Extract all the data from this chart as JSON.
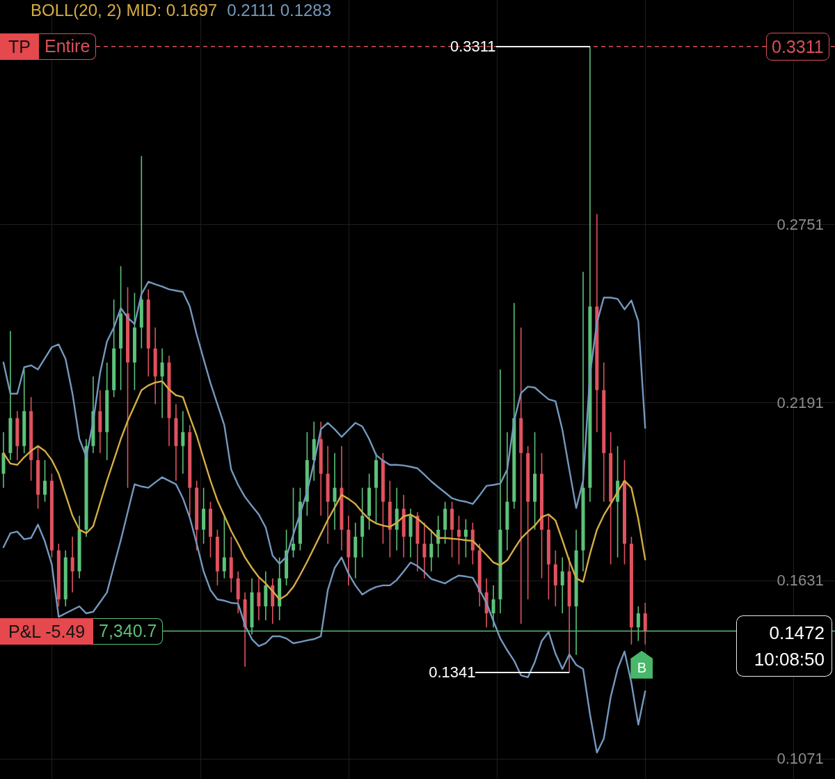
{
  "chart_data": {
    "type": "candlestick",
    "categories": [
      null,
      null,
      null,
      null,
      null,
      null,
      null,
      null,
      null,
      null,
      null,
      null,
      null,
      null,
      null,
      null,
      null,
      null,
      null,
      null,
      null,
      null,
      null,
      null,
      null,
      null,
      null,
      null,
      null,
      null,
      null,
      null,
      null,
      null,
      null,
      null,
      null,
      null,
      null,
      null,
      null,
      null,
      null,
      null,
      null,
      null,
      null,
      null,
      null,
      null,
      null,
      null,
      null,
      null,
      null,
      null,
      null,
      null,
      null,
      null,
      null,
      null,
      null,
      null,
      null,
      null,
      null,
      null,
      null,
      null,
      null,
      null,
      null,
      null,
      null,
      null,
      null,
      null,
      null,
      null,
      null,
      null,
      null,
      null,
      null,
      null,
      null,
      null,
      null,
      null,
      null,
      null,
      null,
      null
    ],
    "ohlc": [
      [
        0.1967,
        0.2098,
        0.1923,
        0.2032
      ],
      [
        0.2032,
        0.2416,
        0.201,
        0.2142
      ],
      [
        0.2142,
        0.2164,
        0.201,
        0.2054
      ],
      [
        0.2054,
        0.2295,
        0.2032,
        0.2164
      ],
      [
        0.2164,
        0.2208,
        0.1945,
        0.201
      ],
      [
        0.201,
        0.2054,
        0.1857,
        0.1901
      ],
      [
        0.1901,
        0.201,
        0.1879,
        0.1945
      ],
      [
        0.1945,
        0.1967,
        0.1704,
        0.1726
      ],
      [
        0.1726,
        0.1747,
        0.155,
        0.1572
      ],
      [
        0.1572,
        0.1726,
        0.155,
        0.1704
      ],
      [
        0.1704,
        0.1769,
        0.1594,
        0.166
      ],
      [
        0.166,
        0.1835,
        0.1638,
        0.1791
      ],
      [
        0.1791,
        0.2076,
        0.1769,
        0.2054
      ],
      [
        0.2054,
        0.2273,
        0.2032,
        0.2164
      ],
      [
        0.2164,
        0.223,
        0.2032,
        0.2098
      ],
      [
        0.2098,
        0.2317,
        0.201,
        0.223
      ],
      [
        0.223,
        0.2515,
        0.2208,
        0.2361
      ],
      [
        0.2361,
        0.262,
        0.223,
        0.2471
      ],
      [
        0.2471,
        0.2554,
        0.1923,
        0.2317
      ],
      [
        0.2317,
        0.2536,
        0.223,
        0.2427
      ],
      [
        0.2427,
        0.2966,
        0.2361,
        0.2515
      ],
      [
        0.2515,
        0.2547,
        0.2273,
        0.2361
      ],
      [
        0.2361,
        0.2427,
        0.2186,
        0.2273
      ],
      [
        0.2273,
        0.2361,
        0.2142,
        0.2317
      ],
      [
        0.2317,
        0.2339,
        0.2054,
        0.2142
      ],
      [
        0.2142,
        0.2186,
        0.1945,
        0.2054
      ],
      [
        0.2054,
        0.2164,
        0.1967,
        0.2098
      ],
      [
        0.2098,
        0.212,
        0.1835,
        0.1923
      ],
      [
        0.1923,
        0.1945,
        0.1726,
        0.1791
      ],
      [
        0.1791,
        0.1923,
        0.1747,
        0.1857
      ],
      [
        0.1857,
        0.1879,
        0.1704,
        0.1769
      ],
      [
        0.1769,
        0.1791,
        0.1616,
        0.166
      ],
      [
        0.166,
        0.1835,
        0.1638,
        0.1704
      ],
      [
        0.1704,
        0.1769,
        0.1594,
        0.1638
      ],
      [
        0.1638,
        0.166,
        0.1528,
        0.1572
      ],
      [
        0.1572,
        0.1594,
        0.136,
        0.1484
      ],
      [
        0.1484,
        0.1638,
        0.1462,
        0.1594
      ],
      [
        0.1594,
        0.1638,
        0.1506,
        0.155
      ],
      [
        0.155,
        0.166,
        0.1506,
        0.1616
      ],
      [
        0.1616,
        0.1638,
        0.1495,
        0.155
      ],
      [
        0.155,
        0.1704,
        0.1506,
        0.1638
      ],
      [
        0.1638,
        0.1791,
        0.1616,
        0.1726
      ],
      [
        0.1726,
        0.1923,
        0.1704,
        0.1747
      ],
      [
        0.1747,
        0.1923,
        0.1726,
        0.1879
      ],
      [
        0.1879,
        0.2098,
        0.1835,
        0.201
      ],
      [
        0.201,
        0.2131,
        0.1945,
        0.2076
      ],
      [
        0.2076,
        0.2131,
        0.1835,
        0.1967
      ],
      [
        0.1967,
        0.2054,
        0.1747,
        0.1879
      ],
      [
        0.1879,
        0.2032,
        0.1791,
        0.1923
      ],
      [
        0.1923,
        0.2054,
        0.1726,
        0.1791
      ],
      [
        0.1791,
        0.1835,
        0.1616,
        0.1704
      ],
      [
        0.1704,
        0.1813,
        0.1638,
        0.1769
      ],
      [
        0.1769,
        0.1923,
        0.1704,
        0.1835
      ],
      [
        0.1835,
        0.1967,
        0.1791,
        0.1923
      ],
      [
        0.1923,
        0.2032,
        0.1813,
        0.201
      ],
      [
        0.201,
        0.2032,
        0.1747,
        0.1879
      ],
      [
        0.1879,
        0.1945,
        0.1704,
        0.1791
      ],
      [
        0.1791,
        0.1923,
        0.1726,
        0.1857
      ],
      [
        0.1857,
        0.1901,
        0.1704,
        0.1769
      ],
      [
        0.1769,
        0.1857,
        0.1704,
        0.1835
      ],
      [
        0.1835,
        0.1846,
        0.166,
        0.1747
      ],
      [
        0.1747,
        0.1813,
        0.1638,
        0.1704
      ],
      [
        0.1704,
        0.1791,
        0.166,
        0.1747
      ],
      [
        0.1747,
        0.1835,
        0.1704,
        0.1791
      ],
      [
        0.1791,
        0.1879,
        0.1747,
        0.1857
      ],
      [
        0.1857,
        0.1879,
        0.1704,
        0.1791
      ],
      [
        0.1791,
        0.1835,
        0.1682,
        0.1769
      ],
      [
        0.1769,
        0.1824,
        0.1704,
        0.1791
      ],
      [
        0.1791,
        0.1813,
        0.1682,
        0.1726
      ],
      [
        0.1726,
        0.1747,
        0.155,
        0.1594
      ],
      [
        0.1594,
        0.1638,
        0.1484,
        0.1528
      ],
      [
        0.1528,
        0.1616,
        0.1484,
        0.1572
      ],
      [
        0.1572,
        0.2295,
        0.1528,
        0.1791
      ],
      [
        0.1791,
        0.2098,
        0.1726,
        0.1879
      ],
      [
        0.1879,
        0.2504,
        0.1857,
        0.2142
      ],
      [
        0.2142,
        0.2427,
        0.1495,
        0.2032
      ],
      [
        0.2032,
        0.2054,
        0.1572,
        0.1879
      ],
      [
        0.1879,
        0.2098,
        0.1791,
        0.1967
      ],
      [
        0.1967,
        0.2032,
        0.1638,
        0.1791
      ],
      [
        0.1791,
        0.1835,
        0.1572,
        0.1682
      ],
      [
        0.1682,
        0.1726,
        0.155,
        0.1616
      ],
      [
        0.1616,
        0.1704,
        0.1528,
        0.166
      ],
      [
        0.166,
        0.1704,
        0.1341,
        0.155
      ],
      [
        0.155,
        0.1791,
        0.1397,
        0.1726
      ],
      [
        0.1726,
        0.2602,
        0.166,
        0.1923
      ],
      [
        0.1923,
        0.3311,
        0.1879,
        0.2493
      ],
      [
        0.2493,
        0.2784,
        0.2098,
        0.223
      ],
      [
        0.223,
        0.2317,
        0.1879,
        0.2032
      ],
      [
        0.2032,
        0.2098,
        0.1682,
        0.1879
      ],
      [
        0.1879,
        0.2054,
        0.1704,
        0.1945
      ],
      [
        0.1945,
        0.201,
        0.1682,
        0.1747
      ],
      [
        0.1747,
        0.1769,
        0.143,
        0.1484
      ],
      [
        0.1484,
        0.155,
        0.1441,
        0.1528
      ],
      [
        0.1528,
        0.1561,
        0.143,
        0.1472
      ]
    ],
    "colors": [
      "#5cc27a",
      "#5cc27a",
      "#e0525f",
      "#5cc27a",
      "#e0525f",
      "#e0525f",
      "#5cc27a",
      "#e0525f",
      "#e0525f",
      "#5cc27a",
      "#e0525f",
      "#5cc27a",
      "#5cc27a",
      "#5cc27a",
      "#e0525f",
      "#5cc27a",
      "#5cc27a",
      "#5cc27a",
      "#e0525f",
      "#5cc27a",
      "#5cc27a",
      "#e0525f",
      "#e0525f",
      "#5cc27a",
      "#e0525f",
      "#e0525f",
      "#5cc27a",
      "#e0525f",
      "#e0525f",
      "#5cc27a",
      "#e0525f",
      "#e0525f",
      "#5cc27a",
      "#e0525f",
      "#e0525f",
      "#e0525f",
      "#5cc27a",
      "#e0525f",
      "#5cc27a",
      "#e0525f",
      "#5cc27a",
      "#5cc27a",
      "#5cc27a",
      "#5cc27a",
      "#5cc27a",
      "#5cc27a",
      "#e0525f",
      "#e0525f",
      "#5cc27a",
      "#e0525f",
      "#e0525f",
      "#5cc27a",
      "#5cc27a",
      "#5cc27a",
      "#5cc27a",
      "#e0525f",
      "#e0525f",
      "#5cc27a",
      "#e0525f",
      "#5cc27a",
      "#e0525f",
      "#e0525f",
      "#5cc27a",
      "#5cc27a",
      "#5cc27a",
      "#e0525f",
      "#e0525f",
      "#5cc27a",
      "#e0525f",
      "#e0525f",
      "#e0525f",
      "#5cc27a",
      "#5cc27a",
      "#5cc27a",
      "#5cc27a",
      "#e0525f",
      "#e0525f",
      "#5cc27a",
      "#e0525f",
      "#e0525f",
      "#e0525f",
      "#5cc27a",
      "#e0525f",
      "#5cc27a",
      "#5cc27a",
      "#5cc27a",
      "#e0525f",
      "#e0525f",
      "#e0525f",
      "#5cc27a",
      "#e0525f",
      "#e0525f",
      "#5cc27a",
      "#e0525f"
    ],
    "series": [
      {
        "type": "line",
        "color": "#7499bf",
        "values": [
          0.2317,
          0.2219,
          0.2219,
          0.2302,
          0.2308,
          0.2295,
          0.233,
          0.2365,
          0.2374,
          0.2328,
          0.2219,
          0.2076,
          0.2021,
          0.2131,
          0.2284,
          0.2383,
          0.2427,
          0.2488,
          0.2458,
          0.2438,
          0.2532,
          0.2571,
          0.2563,
          0.2556,
          0.2547,
          0.2543,
          0.2539,
          0.2493,
          0.2405,
          0.2328,
          0.2252,
          0.2186,
          0.212,
          0.198,
          0.1932,
          0.1894,
          0.1866,
          0.1839,
          0.1798,
          0.171,
          0.1684,
          0.1706,
          0.1776,
          0.1842,
          0.191,
          0.2002,
          0.2107,
          0.2127,
          0.2107,
          0.2083,
          0.2105,
          0.2127,
          0.2116,
          0.2076,
          0.2026,
          0.2008,
          0.1995,
          0.1995,
          0.1993,
          0.1989,
          0.1984,
          0.1964,
          0.1943,
          0.1925,
          0.1908,
          0.189,
          0.1883,
          0.1879,
          0.1872,
          0.1899,
          0.1929,
          0.1932,
          0.1936,
          0.198,
          0.2133,
          0.2221,
          0.2241,
          0.2238,
          0.2219,
          0.2201,
          0.2195,
          0.2105,
          0.198,
          0.1859,
          0.1945,
          0.228,
          0.2442,
          0.2521,
          0.2521,
          0.2517,
          0.2484,
          0.2512,
          0.2447,
          0.2111
        ]
      },
      {
        "type": "line",
        "color": "#d6ad45",
        "values": [
          0.2032,
          0.1999,
          0.1995,
          0.2019,
          0.2039,
          0.2054,
          0.2039,
          0.201,
          0.1967,
          0.1901,
          0.1835,
          0.1791,
          0.178,
          0.1802,
          0.1874,
          0.1945,
          0.201,
          0.2076,
          0.2133,
          0.2181,
          0.223,
          0.2245,
          0.2254,
          0.2258,
          0.2232,
          0.2214,
          0.2208,
          0.2146,
          0.2087,
          0.2015,
          0.1945,
          0.1883,
          0.1835,
          0.1787,
          0.1747,
          0.1704,
          0.1671,
          0.1642,
          0.1622,
          0.1598,
          0.1572,
          0.1585,
          0.1611,
          0.1649,
          0.169,
          0.1734,
          0.1778,
          0.1822,
          0.1861,
          0.1901,
          0.1888,
          0.1872,
          0.1846,
          0.1824,
          0.1811,
          0.1804,
          0.18,
          0.1813,
          0.1833,
          0.1839,
          0.1826,
          0.1807,
          0.1787,
          0.1765,
          0.1765,
          0.1763,
          0.1761,
          0.1758,
          0.1756,
          0.1734,
          0.1712,
          0.1688,
          0.1679,
          0.1695,
          0.173,
          0.1763,
          0.1785,
          0.1804,
          0.1831,
          0.1839,
          0.182,
          0.1758,
          0.1693,
          0.1638,
          0.1627,
          0.1715,
          0.1791,
          0.1837,
          0.1872,
          0.191,
          0.1945,
          0.1923,
          0.1824,
          0.1697
        ]
      },
      {
        "type": "line",
        "color": "#7499bf",
        "values": [
          0.1736,
          0.178,
          0.1785,
          0.1761,
          0.1765,
          0.1807,
          0.1754,
          0.1682,
          0.1517,
          0.1528,
          0.1539,
          0.155,
          0.1528,
          0.1533,
          0.1563,
          0.1594,
          0.1677,
          0.1758,
          0.1846,
          0.1934,
          0.1927,
          0.1923,
          0.194,
          0.1956,
          0.1945,
          0.1934,
          0.189,
          0.1829,
          0.1747,
          0.166,
          0.1601,
          0.1572,
          0.1568,
          0.1561,
          0.1559,
          0.1491,
          0.1447,
          0.1425,
          0.1434,
          0.1456,
          0.1456,
          0.1449,
          0.1434,
          0.1438,
          0.1443,
          0.1447,
          0.1456,
          0.1601,
          0.1671,
          0.1704,
          0.1653,
          0.1616,
          0.1587,
          0.1601,
          0.1611,
          0.1616,
          0.1616,
          0.1633,
          0.166,
          0.1688,
          0.1677,
          0.1658,
          0.1636,
          0.1629,
          0.1622,
          0.1636,
          0.1647,
          0.1644,
          0.164,
          0.1601,
          0.1561,
          0.1504,
          0.1449,
          0.1412,
          0.1379,
          0.1333,
          0.1327,
          0.1375,
          0.1441,
          0.1469,
          0.1401,
          0.1353,
          0.1399,
          0.1366,
          0.1353,
          0.121,
          0.109,
          0.1134,
          0.1265,
          0.1353,
          0.1408,
          0.1309,
          0.1178,
          0.1283
        ]
      }
    ],
    "ylim": [
      0.1007,
      0.3457
    ],
    "yticks": [
      0.1071,
      0.1631,
      0.2191,
      0.2751
    ],
    "grid": true,
    "ref_lines": [
      {
        "axis": "y",
        "value": 0.3311,
        "label": "TP",
        "color": "#d9505a",
        "line_style": "dashed"
      },
      {
        "axis": "y",
        "value": 0.1472,
        "label": "P&L -5.49",
        "color": "#5cbf75",
        "line_style": "solid"
      }
    ],
    "annotations": [
      "BOLL(20, 2) MID: 0.1697",
      "0.2111 0.1283",
      {
        "text": "Entire",
        "y": 0.3311
      },
      {
        "text": "0.3311",
        "y": 0.3311
      },
      "0.3311",
      "0.1341",
      {
        "text": "7,340.7",
        "y": 0.1472
      },
      {
        "text": "0.1472",
        "y": 0.1472
      },
      {
        "text": "10:08:50",
        "y": 0.1472
      },
      "B"
    ]
  }
}
